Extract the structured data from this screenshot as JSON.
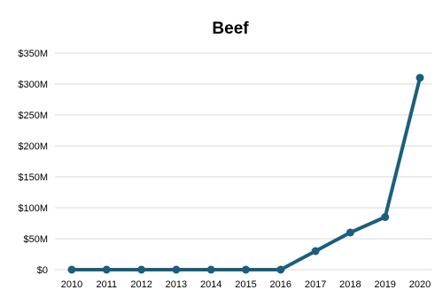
{
  "chart_data": {
    "type": "line",
    "title": "Beef",
    "xlabel": "",
    "ylabel": "",
    "x": [
      "2010",
      "2011",
      "2012",
      "2013",
      "2014",
      "2015",
      "2016",
      "2017",
      "2018",
      "2019",
      "2020"
    ],
    "y_tick_labels": [
      "$0",
      "$50M",
      "$100M",
      "$150M",
      "$200M",
      "$250M",
      "$300M",
      "$350M"
    ],
    "y_tick_values": [
      0,
      50,
      100,
      150,
      200,
      250,
      300,
      350
    ],
    "ylim": [
      0,
      350
    ],
    "y_unit": "millions USD",
    "grid": true,
    "legend": "none",
    "series": [
      {
        "values": [
          0,
          0,
          0,
          0,
          0,
          0,
          0,
          30,
          60,
          85,
          310
        ],
        "color": "#1a5e7f"
      }
    ]
  }
}
